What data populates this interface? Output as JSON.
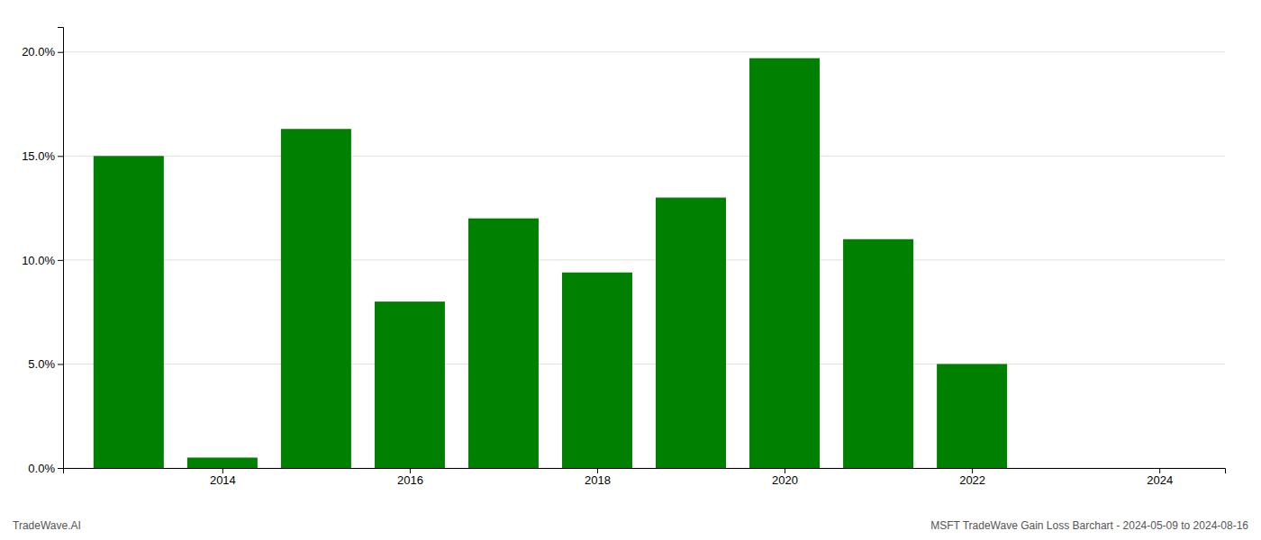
{
  "chart_data": {
    "type": "bar",
    "x": [
      2013,
      2014,
      2015,
      2016,
      2017,
      2018,
      2019,
      2020,
      2021,
      2022,
      2023
    ],
    "values": [
      0.15,
      0.005,
      0.163,
      0.08,
      0.12,
      0.094,
      0.13,
      0.197,
      0.11,
      0.05,
      0.0
    ],
    "color": "#008000",
    "xlim": [
      2012.3,
      2024.7
    ],
    "xticks": [
      2014,
      2016,
      2018,
      2020,
      2022,
      2024
    ],
    "ylim": [
      0,
      0.212
    ],
    "yticks": [
      {
        "value": 0.0,
        "label": "0.0%"
      },
      {
        "value": 0.05,
        "label": "5.0%"
      },
      {
        "value": 0.1,
        "label": "10.0%"
      },
      {
        "value": 0.15,
        "label": "15.0%"
      },
      {
        "value": 0.2,
        "label": "20.0%"
      }
    ],
    "grid": true,
    "annotations": [
      "TradeWave.AI",
      "MSFT TradeWave Gain Loss Barchart - 2024-05-09 to 2024-08-16"
    ]
  }
}
